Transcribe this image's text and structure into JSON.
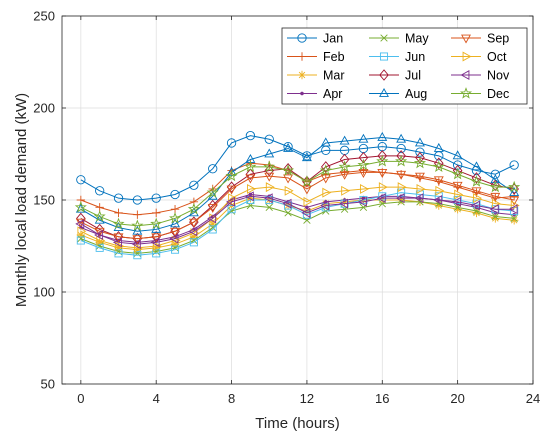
{
  "chart_data": {
    "type": "line",
    "xlabel": "Time (hours)",
    "ylabel": "Monthly local load demand (kW)",
    "xlim": [
      -1,
      24
    ],
    "ylim": [
      50,
      250
    ],
    "xticks": [
      0,
      4,
      8,
      12,
      16,
      20,
      24
    ],
    "yticks": [
      50,
      100,
      150,
      200,
      250
    ],
    "grid": true,
    "legend_position": "top-right",
    "x": [
      0,
      1,
      2,
      3,
      4,
      5,
      6,
      7,
      8,
      9,
      10,
      11,
      12,
      13,
      14,
      15,
      16,
      17,
      18,
      19,
      20,
      21,
      22,
      23
    ],
    "series": [
      {
        "name": "Jan",
        "color": "#0072bd",
        "marker": "circle",
        "values": [
          161,
          155,
          151,
          150,
          151,
          153,
          158,
          167,
          181,
          185,
          183,
          179,
          174,
          177,
          177,
          178,
          179,
          178,
          176,
          174,
          169,
          166,
          164,
          169
        ]
      },
      {
        "name": "Feb",
        "color": "#d95319",
        "marker": "plus",
        "values": [
          150,
          146,
          143,
          142,
          143,
          145,
          149,
          156,
          166,
          170,
          169,
          166,
          160,
          164,
          165,
          166,
          165,
          164,
          162,
          160,
          157,
          154,
          151,
          152
        ]
      },
      {
        "name": "Mar",
        "color": "#edb120",
        "marker": "star",
        "values": [
          131,
          127,
          124,
          123,
          124,
          126,
          130,
          137,
          147,
          151,
          150,
          147,
          144,
          148,
          149,
          150,
          150,
          150,
          149,
          147,
          145,
          143,
          140,
          139
        ]
      },
      {
        "name": "Apr",
        "color": "#7e2f8e",
        "marker": "point",
        "values": [
          135,
          131,
          128,
          127,
          128,
          130,
          134,
          141,
          150,
          153,
          152,
          149,
          146,
          149,
          150,
          151,
          152,
          152,
          151,
          150,
          148,
          146,
          143,
          142
        ]
      },
      {
        "name": "May",
        "color": "#77ac30",
        "marker": "x",
        "values": [
          129,
          125,
          122,
          121,
          122,
          124,
          128,
          135,
          144,
          147,
          146,
          143,
          139,
          144,
          145,
          146,
          148,
          149,
          149,
          148,
          146,
          144,
          141,
          140
        ]
      },
      {
        "name": "Jun",
        "color": "#4dbeee",
        "marker": "square",
        "values": [
          128,
          124,
          121,
          120,
          121,
          123,
          127,
          134,
          145,
          150,
          150,
          147,
          142,
          146,
          148,
          150,
          152,
          154,
          153,
          152,
          150,
          148,
          145,
          144
        ]
      },
      {
        "name": "Jul",
        "color": "#a2142f",
        "marker": "diamond",
        "values": [
          140,
          134,
          130,
          129,
          130,
          133,
          138,
          147,
          157,
          164,
          166,
          167,
          160,
          168,
          172,
          173,
          174,
          174,
          173,
          170,
          166,
          162,
          158,
          156
        ]
      },
      {
        "name": "Aug",
        "color": "#0072bd",
        "marker": "triangle-up",
        "values": [
          145,
          139,
          135,
          133,
          134,
          137,
          143,
          152,
          165,
          172,
          175,
          178,
          173,
          181,
          182,
          183,
          184,
          183,
          181,
          178,
          174,
          168,
          161,
          154
        ]
      },
      {
        "name": "Sep",
        "color": "#d95319",
        "marker": "triangle-down",
        "values": [
          138,
          133,
          130,
          129,
          130,
          133,
          138,
          146,
          156,
          162,
          163,
          162,
          156,
          162,
          164,
          165,
          165,
          164,
          163,
          161,
          158,
          155,
          152,
          150
        ]
      },
      {
        "name": "Oct",
        "color": "#edb120",
        "marker": "triangle-right",
        "values": [
          133,
          128,
          125,
          124,
          125,
          128,
          132,
          140,
          151,
          156,
          157,
          155,
          149,
          154,
          155,
          156,
          157,
          157,
          156,
          155,
          153,
          151,
          148,
          147
        ]
      },
      {
        "name": "Nov",
        "color": "#7e2f8e",
        "marker": "triangle-left",
        "values": [
          137,
          131,
          127,
          126,
          127,
          129,
          133,
          140,
          149,
          152,
          151,
          148,
          143,
          147,
          148,
          149,
          151,
          151,
          151,
          150,
          149,
          147,
          145,
          145
        ]
      },
      {
        "name": "Dec",
        "color": "#77ac30",
        "marker": "pentagram",
        "values": [
          146,
          141,
          137,
          136,
          137,
          140,
          145,
          154,
          163,
          168,
          168,
          166,
          160,
          166,
          168,
          169,
          171,
          171,
          170,
          168,
          164,
          160,
          157,
          157
        ]
      }
    ]
  }
}
